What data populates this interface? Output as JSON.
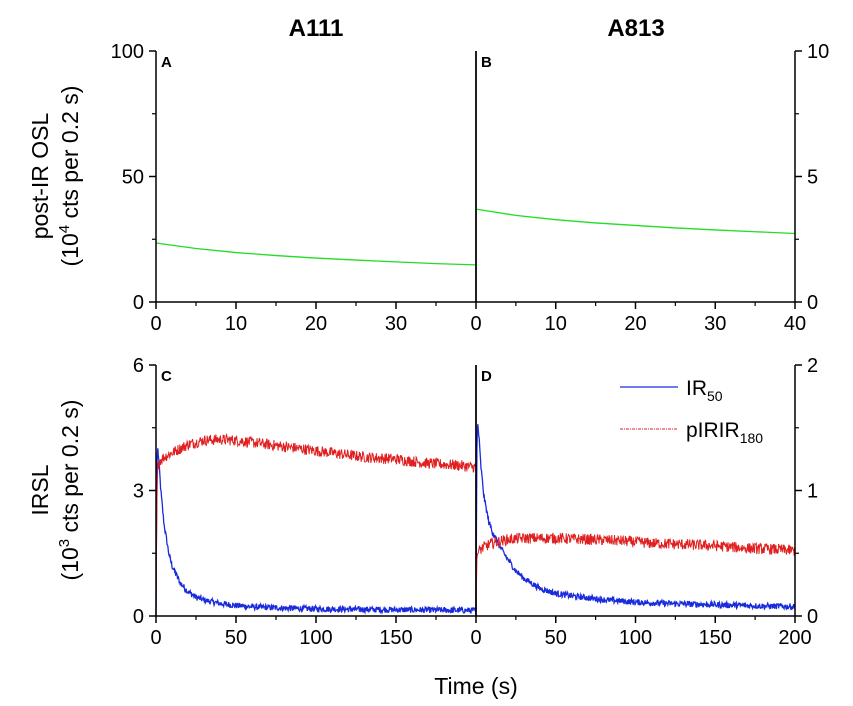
{
  "columns": [
    "A111",
    "A813"
  ],
  "xlabel": "Time (s)",
  "top_ylabel_line1": "post-IR OSL",
  "top_ylabel_line2_pre": "(10",
  "top_ylabel_line2_sup": "4",
  "top_ylabel_line2_post": " cts per 0.2 s)",
  "bottom_ylabel_line1": "IRSL",
  "bottom_ylabel_line2_pre": "(10",
  "bottom_ylabel_line2_sup": "3",
  "bottom_ylabel_line2_post": " cts per 0.2 s)",
  "colors": {
    "green": "#22dd22",
    "blue": "#1a2bdd",
    "red": "#e02020"
  },
  "chart_data": [
    {
      "panel": "A",
      "type": "line",
      "column": "A111",
      "xlim": [
        0,
        40
      ],
      "ylim": [
        0,
        100
      ],
      "xticks": [
        0,
        10,
        20,
        30
      ],
      "yticks": [
        0,
        50,
        100
      ],
      "yaxis_side": "left",
      "series": [
        {
          "color": "green",
          "x": [
            0,
            5,
            10,
            15,
            20,
            25,
            30,
            35,
            40
          ],
          "values": [
            23.5,
            21.3,
            19.7,
            18.5,
            17.5,
            16.7,
            16.0,
            15.3,
            14.8
          ]
        }
      ]
    },
    {
      "panel": "B",
      "type": "line",
      "column": "A813",
      "xlim": [
        0,
        40
      ],
      "ylim": [
        0,
        10
      ],
      "xticks": [
        0,
        10,
        20,
        30,
        40
      ],
      "yticks": [
        0,
        5,
        10
      ],
      "yaxis_side": "right",
      "series": [
        {
          "color": "green",
          "x": [
            0,
            5,
            10,
            15,
            20,
            25,
            30,
            35,
            40
          ],
          "values": [
            3.7,
            3.45,
            3.28,
            3.15,
            3.05,
            2.95,
            2.87,
            2.8,
            2.73
          ]
        }
      ]
    },
    {
      "panel": "C",
      "type": "line",
      "column": "A111",
      "xlim": [
        0,
        200
      ],
      "ylim": [
        0,
        6
      ],
      "xticks": [
        0,
        50,
        100,
        150
      ],
      "yticks": [
        0,
        3,
        6
      ],
      "yaxis_side": "left",
      "series": [
        {
          "name": "IR50",
          "color": "blue",
          "x": [
            0,
            0.5,
            1,
            2,
            3,
            5,
            8,
            10,
            15,
            20,
            25,
            30,
            40,
            50,
            60,
            80,
            100,
            120,
            150,
            180,
            200
          ],
          "values": [
            0,
            3.5,
            4.05,
            3.6,
            3.0,
            2.2,
            1.5,
            1.2,
            0.8,
            0.58,
            0.45,
            0.38,
            0.3,
            0.25,
            0.22,
            0.19,
            0.17,
            0.16,
            0.15,
            0.14,
            0.13
          ]
        },
        {
          "name": "pIRIR180",
          "color": "red",
          "x": [
            0,
            0.5,
            1,
            2,
            5,
            10,
            20,
            30,
            40,
            50,
            70,
            90,
            110,
            130,
            150,
            170,
            190,
            200
          ],
          "values": [
            0,
            2.6,
            3.5,
            3.7,
            3.8,
            3.9,
            4.1,
            4.2,
            4.22,
            4.2,
            4.1,
            4.0,
            3.9,
            3.8,
            3.75,
            3.65,
            3.6,
            3.55
          ]
        }
      ]
    },
    {
      "panel": "D",
      "type": "line",
      "column": "A813",
      "xlim": [
        0,
        200
      ],
      "ylim": [
        0,
        2
      ],
      "xticks": [
        0,
        50,
        100,
        150,
        200
      ],
      "yticks": [
        0,
        1,
        2
      ],
      "yaxis_side": "right",
      "legend": {
        "entries": [
          "IR",
          "pIRIR"
        ],
        "subscripts": [
          "50",
          "180"
        ],
        "placement": "top-right"
      },
      "series": [
        {
          "name": "IR50",
          "color": "blue",
          "x": [
            0,
            0.5,
            1,
            2,
            3,
            5,
            8,
            10,
            15,
            20,
            25,
            30,
            40,
            50,
            60,
            80,
            100,
            120,
            150,
            180,
            200
          ],
          "values": [
            0,
            1.3,
            1.55,
            1.4,
            1.2,
            0.95,
            0.75,
            0.68,
            0.55,
            0.45,
            0.36,
            0.3,
            0.22,
            0.18,
            0.16,
            0.13,
            0.11,
            0.1,
            0.09,
            0.08,
            0.075
          ]
        },
        {
          "name": "pIRIR180",
          "color": "red",
          "x": [
            0,
            0.5,
            1,
            2,
            5,
            10,
            20,
            30,
            40,
            50,
            70,
            90,
            110,
            130,
            150,
            170,
            190,
            200
          ],
          "values": [
            0,
            0.45,
            0.5,
            0.52,
            0.55,
            0.58,
            0.61,
            0.62,
            0.62,
            0.62,
            0.61,
            0.6,
            0.58,
            0.57,
            0.56,
            0.54,
            0.53,
            0.52
          ]
        }
      ]
    }
  ]
}
